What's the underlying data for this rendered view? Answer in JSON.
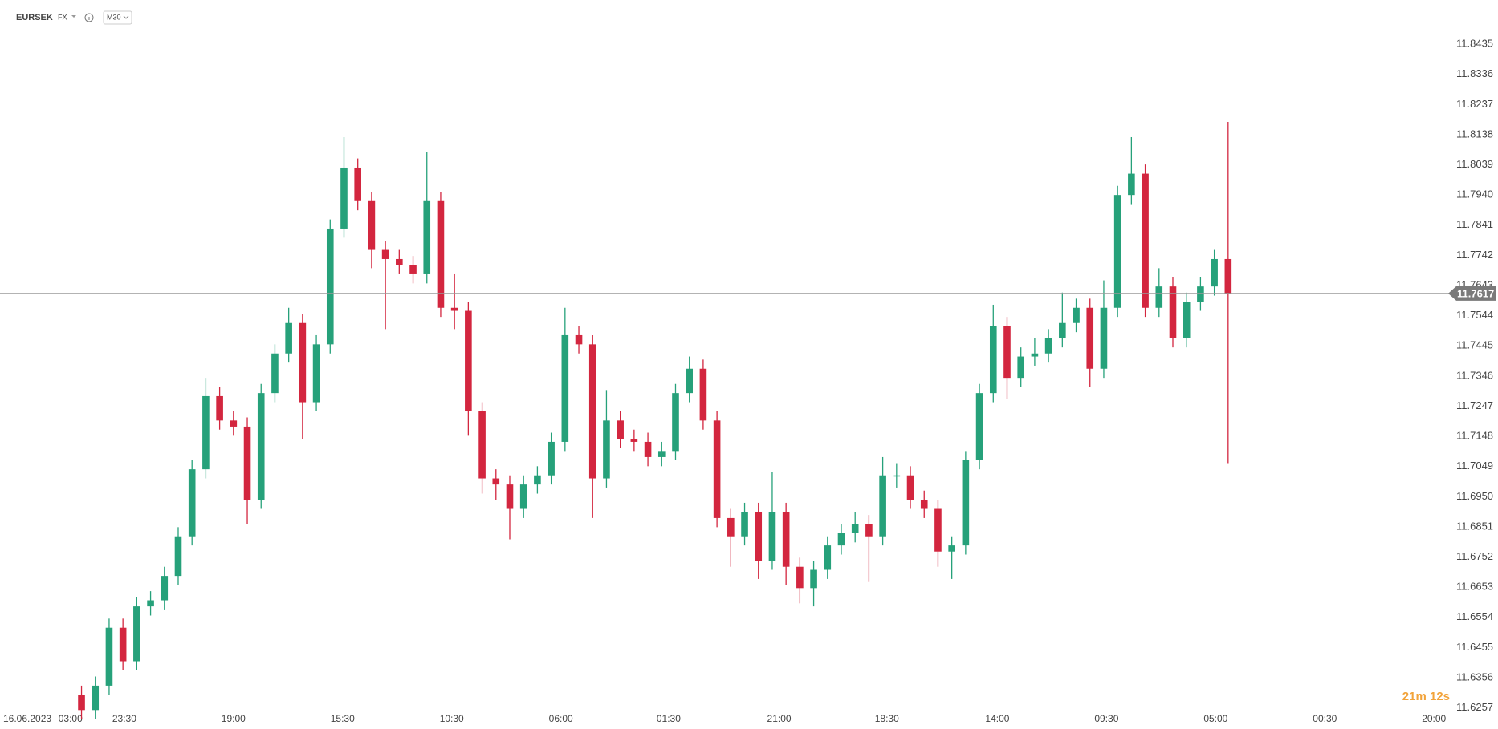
{
  "chart_data": {
    "type": "candlestick",
    "title": "EURSEK",
    "subtitle": "FX",
    "timeframe": "M30",
    "up_color": "#26a17a",
    "down_color": "#d3263f",
    "x": [
      0,
      1,
      2,
      3,
      4,
      5,
      6,
      7,
      8,
      9,
      10,
      11,
      12,
      13,
      14,
      15,
      16,
      17,
      18,
      19,
      20,
      21,
      22,
      23,
      24,
      25,
      26,
      27,
      28,
      29,
      30,
      31,
      32,
      33,
      34,
      35,
      36,
      37,
      38,
      39,
      40,
      41,
      42,
      43,
      44,
      45,
      46,
      47,
      48,
      49,
      50,
      51,
      52,
      53,
      54,
      55,
      56,
      57,
      58,
      59,
      60,
      61,
      62,
      63,
      64,
      65,
      66,
      67,
      68,
      69,
      70,
      71,
      72,
      73,
      74,
      75,
      76,
      77,
      78,
      79,
      80,
      81,
      82,
      83
    ],
    "open": [
      11.63,
      11.625,
      11.633,
      11.652,
      11.641,
      11.659,
      11.661,
      11.669,
      11.682,
      11.704,
      11.728,
      11.72,
      11.718,
      11.694,
      11.729,
      11.742,
      11.752,
      11.726,
      11.745,
      11.783,
      11.803,
      11.792,
      11.776,
      11.773,
      11.771,
      11.768,
      11.792,
      11.757,
      11.756,
      11.723,
      11.701,
      11.699,
      11.691,
      11.699,
      11.702,
      11.713,
      11.748,
      11.745,
      11.701,
      11.72,
      11.714,
      11.713,
      11.708,
      11.71,
      11.729,
      11.737,
      11.72,
      11.688,
      11.682,
      11.69,
      11.674,
      11.69,
      11.672,
      11.665,
      11.671,
      11.679,
      11.683,
      11.686,
      11.682,
      11.702,
      11.702,
      11.694,
      11.691,
      11.677,
      11.679,
      11.707,
      11.729,
      11.751,
      11.734,
      11.741,
      11.742,
      11.747,
      11.752,
      11.757,
      11.737,
      11.757,
      11.794,
      11.801,
      11.757,
      11.764,
      11.747,
      11.759,
      11.764,
      11.773
    ],
    "high": [
      11.633,
      11.636,
      11.655,
      11.655,
      11.662,
      11.664,
      11.672,
      11.685,
      11.707,
      11.734,
      11.731,
      11.723,
      11.721,
      11.732,
      11.745,
      11.757,
      11.755,
      11.748,
      11.786,
      11.813,
      11.806,
      11.795,
      11.779,
      11.776,
      11.774,
      11.808,
      11.795,
      11.768,
      11.759,
      11.726,
      11.704,
      11.702,
      11.702,
      11.705,
      11.716,
      11.757,
      11.751,
      11.748,
      11.73,
      11.723,
      11.717,
      11.716,
      11.713,
      11.732,
      11.741,
      11.74,
      11.723,
      11.691,
      11.693,
      11.693,
      11.703,
      11.693,
      11.675,
      11.674,
      11.682,
      11.686,
      11.69,
      11.689,
      11.708,
      11.706,
      11.705,
      11.697,
      11.694,
      11.682,
      11.71,
      11.732,
      11.758,
      11.754,
      11.744,
      11.747,
      11.75,
      11.762,
      11.76,
      11.76,
      11.766,
      11.797,
      11.813,
      11.804,
      11.77,
      11.767,
      11.762,
      11.767,
      11.776,
      11.818
    ],
    "low": [
      11.622,
      11.622,
      11.63,
      11.638,
      11.638,
      11.656,
      11.658,
      11.666,
      11.679,
      11.701,
      11.717,
      11.715,
      11.686,
      11.691,
      11.726,
      11.739,
      11.714,
      11.723,
      11.742,
      11.78,
      11.789,
      11.77,
      11.75,
      11.768,
      11.765,
      11.765,
      11.754,
      11.75,
      11.715,
      11.696,
      11.694,
      11.681,
      11.688,
      11.696,
      11.699,
      11.71,
      11.742,
      11.688,
      11.698,
      11.711,
      11.71,
      11.705,
      11.705,
      11.707,
      11.726,
      11.717,
      11.685,
      11.672,
      11.679,
      11.668,
      11.671,
      11.666,
      11.66,
      11.659,
      11.668,
      11.676,
      11.68,
      11.667,
      11.679,
      11.698,
      11.691,
      11.688,
      11.672,
      11.668,
      11.676,
      11.704,
      11.726,
      11.727,
      11.731,
      11.738,
      11.739,
      11.744,
      11.749,
      11.731,
      11.734,
      11.754,
      11.791,
      11.754,
      11.754,
      11.744,
      11.744,
      11.756,
      11.761,
      11.706
    ],
    "close": [
      11.625,
      11.633,
      11.652,
      11.641,
      11.659,
      11.661,
      11.669,
      11.682,
      11.704,
      11.728,
      11.72,
      11.718,
      11.694,
      11.729,
      11.742,
      11.752,
      11.726,
      11.745,
      11.783,
      11.803,
      11.792,
      11.776,
      11.773,
      11.771,
      11.768,
      11.792,
      11.757,
      11.756,
      11.723,
      11.701,
      11.699,
      11.691,
      11.699,
      11.702,
      11.713,
      11.748,
      11.745,
      11.701,
      11.72,
      11.714,
      11.713,
      11.708,
      11.71,
      11.729,
      11.737,
      11.72,
      11.688,
      11.682,
      11.69,
      11.674,
      11.69,
      11.672,
      11.665,
      11.671,
      11.679,
      11.683,
      11.686,
      11.682,
      11.702,
      11.702,
      11.694,
      11.691,
      11.677,
      11.679,
      11.707,
      11.729,
      11.751,
      11.734,
      11.741,
      11.742,
      11.747,
      11.752,
      11.757,
      11.737,
      11.757,
      11.794,
      11.801,
      11.757,
      11.764,
      11.747,
      11.759,
      11.764,
      11.773,
      11.7617
    ],
    "last_price": 11.7617,
    "countdown": "21m 12s",
    "xlim": [
      -5.9,
      98.7
    ],
    "xticks": [
      {
        "value": -5.6,
        "label": "16.06.2023"
      },
      {
        "value": -0.8,
        "label": "03:00"
      },
      {
        "value": 3.1,
        "label": "23:30"
      },
      {
        "value": 11,
        "label": "19:00"
      },
      {
        "value": 18.9,
        "label": "15:30"
      },
      {
        "value": 26.8,
        "label": "10:30"
      },
      {
        "value": 34.7,
        "label": "06:00"
      },
      {
        "value": 42.5,
        "label": "01:30"
      },
      {
        "value": 50.5,
        "label": "21:00"
      },
      {
        "value": 58.3,
        "label": "18:30"
      },
      {
        "value": 66.3,
        "label": "14:00"
      },
      {
        "value": 74.2,
        "label": "09:30"
      },
      {
        "value": 82.1,
        "label": "05:00"
      },
      {
        "value": 90,
        "label": "00:30"
      },
      {
        "value": 97.9,
        "label": "20:00"
      }
    ],
    "ylim": [
      11.6235,
      11.858
    ],
    "yticks": [
      11.8435,
      11.8336,
      11.8237,
      11.8138,
      11.8039,
      {
        "value": 11.794,
        "label": "11.7940"
      },
      11.7841,
      11.7742,
      11.7643,
      11.7544,
      11.7445,
      11.7346,
      11.7247,
      11.7148,
      11.7049,
      {
        "value": 11.695,
        "label": "11.6950"
      },
      11.6851,
      11.6752,
      11.6653,
      11.6554,
      11.6455,
      11.6356,
      11.6257
    ]
  }
}
